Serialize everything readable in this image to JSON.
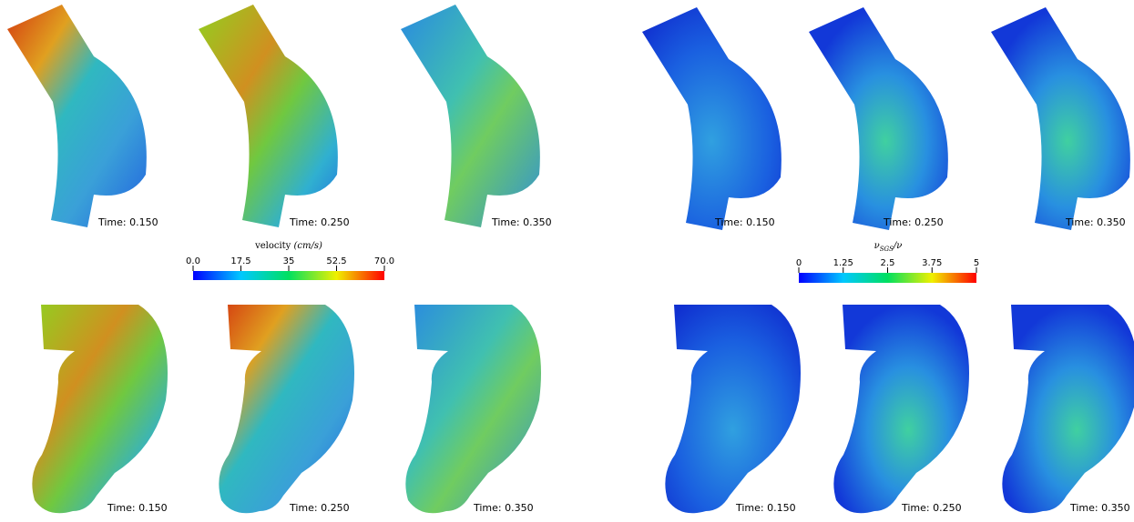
{
  "panels": [
    {
      "label": "Time: 0.150"
    },
    {
      "label": "Time: 0.250"
    },
    {
      "label": "Time: 0.350"
    },
    {
      "label": "Time: 0.150"
    },
    {
      "label": "Time: 0.250"
    },
    {
      "label": "Time: 0.350"
    },
    {
      "label": "Time: 0.150"
    },
    {
      "label": "Time: 0.250"
    },
    {
      "label": "Time: 0.350"
    },
    {
      "label": "Time: 0.150"
    },
    {
      "label": "Time: 0.250"
    },
    {
      "label": "Time: 0.350"
    }
  ],
  "colorbars": [
    {
      "title": {
        "text": "velocity ",
        "unit": "(cm/s)"
      },
      "range": [
        0,
        70
      ],
      "ticks": [
        {
          "value": 0,
          "label": "0.0"
        },
        17.5,
        35,
        52.5,
        {
          "value": 70,
          "label": "70.0"
        }
      ]
    },
    {
      "title": {
        "symbol": "ν",
        "subscript": "SGS",
        "tail": "/ν"
      },
      "range": [
        0,
        5
      ],
      "ticks": [
        0,
        1.25,
        2.5,
        3.75,
        5
      ]
    }
  ]
}
